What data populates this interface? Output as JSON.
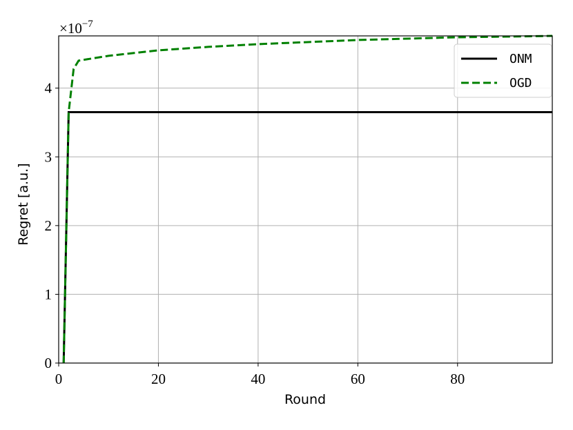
{
  "chart_data": {
    "type": "line",
    "x_label": "Round",
    "y_label": "Regret [a.u.]",
    "y_offset_label": {
      "base": "×10",
      "exponent": "−7"
    },
    "x": [
      1,
      2,
      3,
      4,
      10,
      20,
      30,
      40,
      50,
      60,
      70,
      80,
      90,
      99
    ],
    "series": [
      {
        "name": "ONM",
        "color": "#000000",
        "dash": "solid",
        "values": [
          0,
          3.65,
          3.65,
          3.65,
          3.65,
          3.65,
          3.65,
          3.65,
          3.65,
          3.65,
          3.65,
          3.65,
          3.65,
          3.65
        ]
      },
      {
        "name": "OGD",
        "color": "#008000",
        "dash": "dashed",
        "values": [
          0,
          3.65,
          4.28,
          4.4,
          4.47,
          4.55,
          4.6,
          4.64,
          4.67,
          4.7,
          4.72,
          4.74,
          4.75,
          4.76
        ]
      }
    ],
    "xlim": [
      0,
      99
    ],
    "ylim": [
      0,
      4.76
    ],
    "xticks": [
      0,
      20,
      40,
      60,
      80
    ],
    "yticks": [
      0,
      1,
      2,
      3,
      4
    ],
    "grid": true,
    "legend": "upper right"
  }
}
